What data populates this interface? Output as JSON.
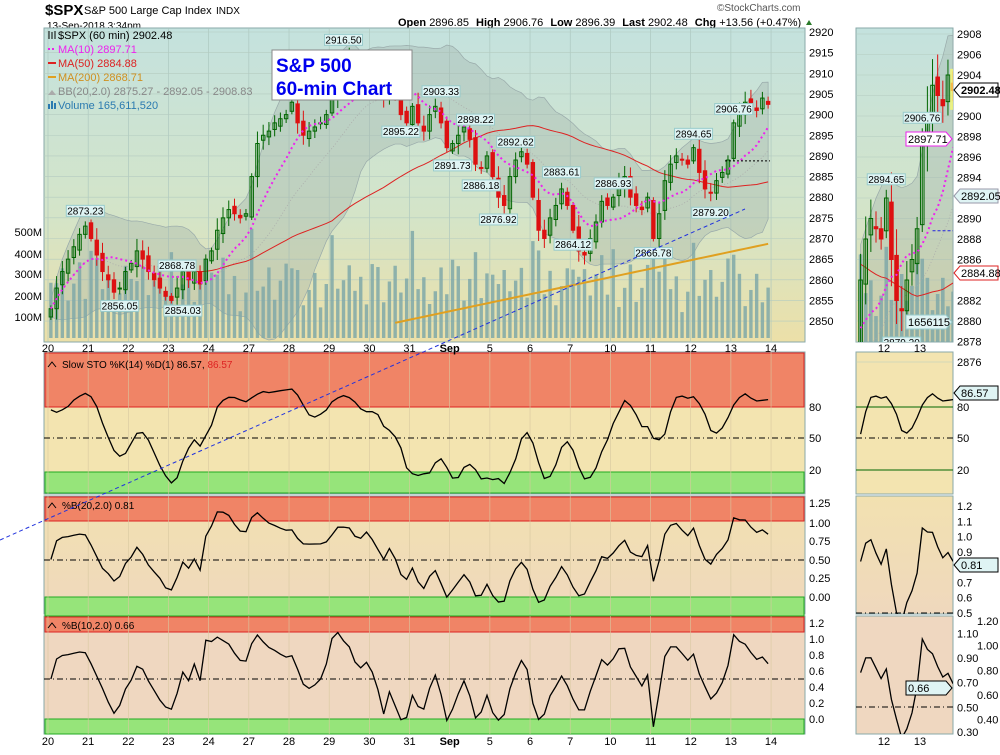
{
  "header": {
    "symbol": "$SPX",
    "name": "S&P 500 Large Cap Index",
    "exchange": "INDX",
    "datetime": "13-Sep-2018 3:34pm",
    "open_label": "Open",
    "open": "2896.85",
    "high_label": "High",
    "high": "2906.76",
    "low_label": "Low",
    "low": "2896.39",
    "last_label": "Last",
    "last": "2902.48",
    "chg_label": "Chg",
    "chg": "+13.56 (+0.47%)",
    "watermark": "©StockCharts.com"
  },
  "title_box": {
    "line1": "S&P 500",
    "line2": "60-min Chart",
    "color": "#0000ee"
  },
  "legend": {
    "price": "$SPX (60 min) 2902.48",
    "ma10": "MA(10) 2897.71",
    "ma50": "MA(50) 2884.88",
    "ma200": "MA(200) 2868.71",
    "bb": "BB(20,2.0) 2875.27 - 2892.05 - 2908.83",
    "volume": "Volume 165,611,520"
  },
  "colors": {
    "up": "#006600",
    "down": "#dd1111",
    "ma10": "#ee22ee",
    "ma50": "#dd2222",
    "ma200": "#e0a020",
    "volume": "#7fa8a8",
    "trendline": "#2233dd",
    "overbought": "#f08466",
    "oversold": "#96e47a"
  },
  "price_axis": [
    "2920",
    "2915",
    "2910",
    "2905",
    "2900",
    "2895",
    "2890",
    "2885",
    "2880",
    "2875",
    "2870",
    "2865",
    "2860",
    "2855",
    "2850"
  ],
  "volume_axis": [
    "500M",
    "400M",
    "300M",
    "200M",
    "100M"
  ],
  "dates": [
    "20",
    "21",
    "22",
    "23",
    "24",
    "27",
    "28",
    "29",
    "30",
    "31",
    "Sep",
    "5",
    "6",
    "7",
    "10",
    "11",
    "12",
    "13",
    "14"
  ],
  "closes": [
    2853,
    2858,
    2862,
    2865,
    2868,
    2871,
    2873,
    2870,
    2866,
    2862,
    2860,
    2857,
    2858,
    2862,
    2864,
    2867,
    2865,
    2862,
    2860,
    2858,
    2856,
    2855,
    2858,
    2862,
    2860,
    2862,
    2859,
    2865,
    2867,
    2872,
    2875,
    2877,
    2876,
    2875,
    2876,
    2885,
    2893,
    2895,
    2896,
    2898,
    2899,
    2900,
    2903,
    2898,
    2895,
    2896,
    2897,
    2898,
    2900,
    2905,
    2911,
    2913,
    2914,
    2910,
    2909,
    2912,
    2910,
    2907,
    2904,
    2908,
    2905,
    2900,
    2898,
    2902,
    2898,
    2896,
    2900,
    2902,
    2898,
    2892,
    2893,
    2895,
    2897,
    2894,
    2888,
    2887,
    2890,
    2885,
    2880,
    2878,
    2885,
    2889,
    2891,
    2888,
    2880,
    2872,
    2870,
    2875,
    2878,
    2882,
    2878,
    2872,
    2867,
    2866,
    2870,
    2874,
    2879,
    2878,
    2880,
    2883,
    2885,
    2880,
    2878,
    2877,
    2880,
    2870,
    2876,
    2884,
    2888,
    2890,
    2889,
    2888,
    2892,
    2886,
    2882,
    2881,
    2884,
    2886,
    2889,
    2898,
    2900,
    2903,
    2902,
    2901,
    2904,
    2902.48
  ],
  "annotations": [
    {
      "label": "2873.23",
      "bar": 6,
      "at": "above"
    },
    {
      "label": "2856.05",
      "bar": 12,
      "at": "below"
    },
    {
      "label": "2868.78",
      "bar": 22,
      "at": "above"
    },
    {
      "label": "2854.03",
      "bar": 23,
      "at": "below"
    },
    {
      "label": "2916.50",
      "bar": 51,
      "at": "above"
    },
    {
      "label": "2895.22",
      "bar": 61,
      "at": "below"
    },
    {
      "label": "2903.33",
      "bar": 68,
      "at": "above"
    },
    {
      "label": "2891.73",
      "bar": 70,
      "at": "below"
    },
    {
      "label": "2898.22",
      "bar": 74,
      "at": "above"
    },
    {
      "label": "2886.18",
      "bar": 75,
      "at": "below"
    },
    {
      "label": "2892.62",
      "bar": 81,
      "at": "above"
    },
    {
      "label": "2876.92",
      "bar": 78,
      "at": "below"
    },
    {
      "label": "2883.61",
      "bar": 89,
      "at": "above"
    },
    {
      "label": "2864.12",
      "bar": 91,
      "at": "below"
    },
    {
      "label": "2886.93",
      "bar": 98,
      "at": "above"
    },
    {
      "label": "2866.78",
      "bar": 105,
      "at": "below"
    },
    {
      "label": "2894.65",
      "bar": 112,
      "at": "above"
    },
    {
      "label": "2879.20",
      "bar": 115,
      "at": "below"
    },
    {
      "label": "2906.76",
      "bar": 119,
      "at": "above"
    }
  ],
  "sto": {
    "label": "Slow STO %K(14) %D(1) 86.57,",
    "label2": "86.57",
    "axis": [
      "80",
      "50",
      "20"
    ],
    "tag": "86.57"
  },
  "pb20": {
    "label": "%B(20,2.0) 0.81",
    "axis": [
      "1.25",
      "1.00",
      "0.75",
      "0.50",
      "0.25",
      "0.00"
    ],
    "mini_axis": [
      "1.2",
      "1.1",
      "1.0",
      "0.9",
      "0.7",
      "0.6",
      "0.5"
    ],
    "tag": "0.81"
  },
  "pb10": {
    "label": "%B(10,2.0) 0.66",
    "axis": [
      "1.2",
      "1.0",
      "0.8",
      "0.6",
      "0.4",
      "0.2",
      "0.0"
    ],
    "mini_axis": [
      "1.20",
      "1.10",
      "1.00",
      "0.90",
      "0.80",
      "0.70",
      "0.60",
      "0.50",
      "0.40",
      "0.30"
    ],
    "tag": "0.66"
  },
  "mini": {
    "price_axis": [
      "2908",
      "2906",
      "2904",
      "2900",
      "2898",
      "2896",
      "2894",
      "2890",
      "2888",
      "2886",
      "2882",
      "2880",
      "2878",
      "2876"
    ],
    "tags": {
      "last": "2902.48",
      "ma10": "2897.71",
      "bb_mid": "2892.05",
      "ma50": "2884.88",
      "volume": "1656115"
    },
    "dates": [
      "12",
      "13"
    ]
  }
}
